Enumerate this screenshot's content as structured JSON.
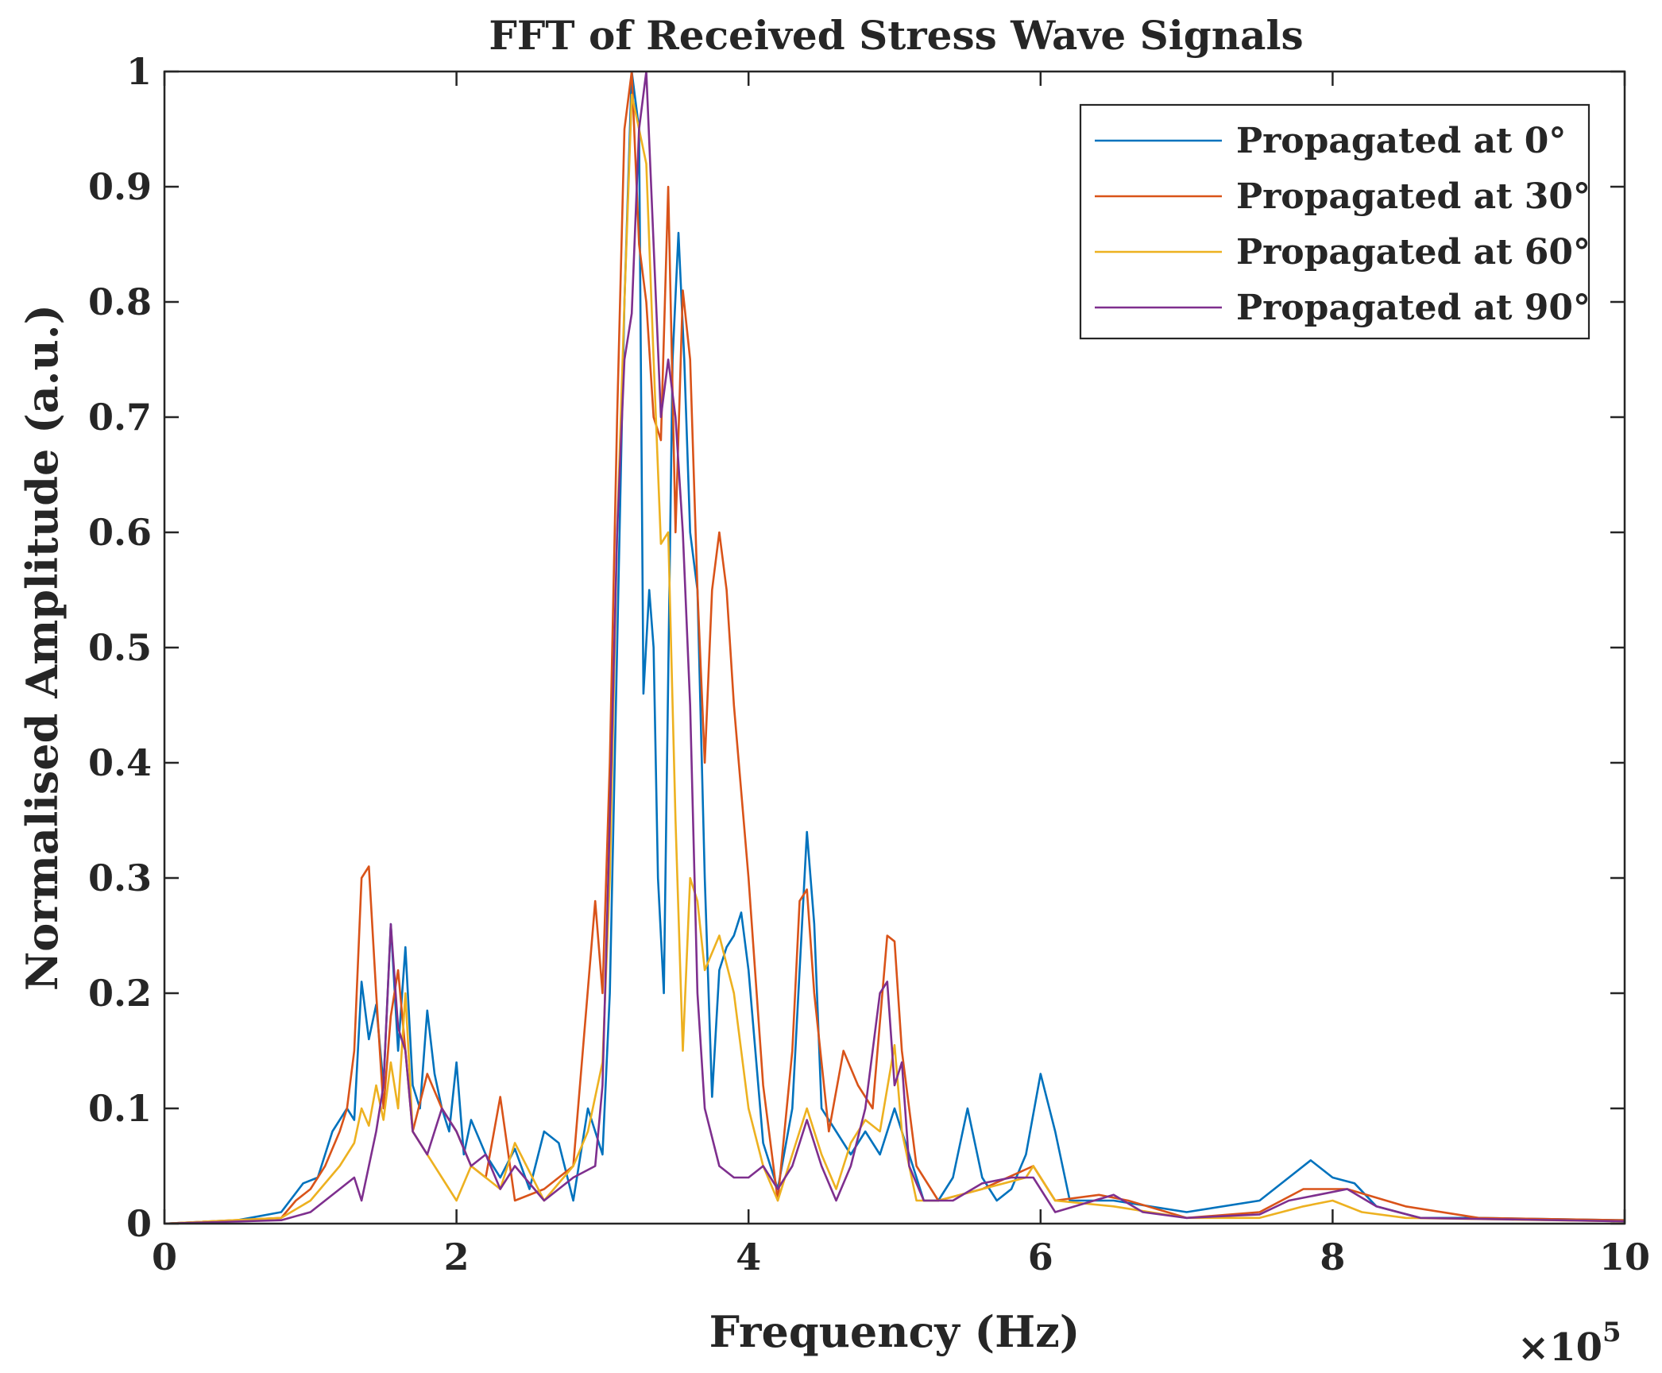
{
  "chart_data": {
    "type": "line",
    "title": "FFT of Received Stress Wave Signals",
    "xlabel": "Frequency (Hz)",
    "ylabel": "Normalised Amplitude (a.u.)",
    "x_multiplier": {
      "base": "×10",
      "exponent": "5"
    },
    "xlim": [
      0,
      10
    ],
    "ylim": [
      0,
      1
    ],
    "x_ticks": [
      0,
      2,
      4,
      6,
      8,
      10
    ],
    "x_tick_labels": [
      "0",
      "2",
      "4",
      "6",
      "8",
      "10"
    ],
    "y_ticks": [
      0,
      0.1,
      0.2,
      0.3,
      0.4,
      0.5,
      0.6,
      0.7,
      0.8,
      0.9,
      1
    ],
    "y_tick_labels": [
      "0",
      "0.1",
      "0.2",
      "0.3",
      "0.4",
      "0.5",
      "0.6",
      "0.7",
      "0.8",
      "0.9",
      "1"
    ],
    "grid": false,
    "legend_position": "top-right",
    "series": [
      {
        "name": "Propagated at 0°",
        "color": "#0072BD",
        "points": [
          [
            0,
            0
          ],
          [
            0.5,
            0.003
          ],
          [
            0.8,
            0.01
          ],
          [
            0.95,
            0.035
          ],
          [
            1.05,
            0.04
          ],
          [
            1.15,
            0.08
          ],
          [
            1.25,
            0.1
          ],
          [
            1.3,
            0.09
          ],
          [
            1.35,
            0.21
          ],
          [
            1.4,
            0.16
          ],
          [
            1.45,
            0.19
          ],
          [
            1.5,
            0.12
          ],
          [
            1.55,
            0.26
          ],
          [
            1.6,
            0.15
          ],
          [
            1.65,
            0.24
          ],
          [
            1.7,
            0.12
          ],
          [
            1.75,
            0.1
          ],
          [
            1.8,
            0.185
          ],
          [
            1.85,
            0.13
          ],
          [
            1.9,
            0.1
          ],
          [
            1.95,
            0.08
          ],
          [
            2.0,
            0.14
          ],
          [
            2.05,
            0.06
          ],
          [
            2.1,
            0.09
          ],
          [
            2.2,
            0.06
          ],
          [
            2.3,
            0.04
          ],
          [
            2.4,
            0.065
          ],
          [
            2.5,
            0.03
          ],
          [
            2.6,
            0.08
          ],
          [
            2.7,
            0.07
          ],
          [
            2.8,
            0.02
          ],
          [
            2.9,
            0.1
          ],
          [
            3.0,
            0.06
          ],
          [
            3.05,
            0.2
          ],
          [
            3.1,
            0.5
          ],
          [
            3.15,
            0.8
          ],
          [
            3.2,
            1.0
          ],
          [
            3.25,
            0.95
          ],
          [
            3.28,
            0.46
          ],
          [
            3.32,
            0.55
          ],
          [
            3.35,
            0.5
          ],
          [
            3.38,
            0.3
          ],
          [
            3.42,
            0.2
          ],
          [
            3.48,
            0.75
          ],
          [
            3.52,
            0.86
          ],
          [
            3.56,
            0.75
          ],
          [
            3.6,
            0.6
          ],
          [
            3.65,
            0.55
          ],
          [
            3.7,
            0.3
          ],
          [
            3.75,
            0.11
          ],
          [
            3.8,
            0.22
          ],
          [
            3.85,
            0.24
          ],
          [
            3.9,
            0.25
          ],
          [
            3.95,
            0.27
          ],
          [
            4.0,
            0.22
          ],
          [
            4.1,
            0.07
          ],
          [
            4.2,
            0.03
          ],
          [
            4.3,
            0.1
          ],
          [
            4.35,
            0.22
          ],
          [
            4.4,
            0.34
          ],
          [
            4.45,
            0.26
          ],
          [
            4.5,
            0.1
          ],
          [
            4.6,
            0.08
          ],
          [
            4.7,
            0.06
          ],
          [
            4.8,
            0.08
          ],
          [
            4.9,
            0.06
          ],
          [
            5.0,
            0.1
          ],
          [
            5.1,
            0.06
          ],
          [
            5.2,
            0.02
          ],
          [
            5.3,
            0.02
          ],
          [
            5.4,
            0.04
          ],
          [
            5.5,
            0.1
          ],
          [
            5.6,
            0.04
          ],
          [
            5.7,
            0.02
          ],
          [
            5.8,
            0.03
          ],
          [
            5.9,
            0.06
          ],
          [
            6.0,
            0.13
          ],
          [
            6.1,
            0.08
          ],
          [
            6.2,
            0.02
          ],
          [
            6.5,
            0.02
          ],
          [
            7.0,
            0.01
          ],
          [
            7.5,
            0.02
          ],
          [
            7.7,
            0.04
          ],
          [
            7.85,
            0.055
          ],
          [
            8.0,
            0.04
          ],
          [
            8.15,
            0.035
          ],
          [
            8.3,
            0.015
          ],
          [
            8.6,
            0.005
          ],
          [
            9.0,
            0.005
          ],
          [
            10,
            0.003
          ]
        ]
      },
      {
        "name": "Propagated at 30°",
        "color": "#D95319",
        "points": [
          [
            0,
            0
          ],
          [
            0.8,
            0.005
          ],
          [
            0.9,
            0.02
          ],
          [
            1.0,
            0.03
          ],
          [
            1.1,
            0.05
          ],
          [
            1.2,
            0.08
          ],
          [
            1.25,
            0.1
          ],
          [
            1.3,
            0.15
          ],
          [
            1.35,
            0.3
          ],
          [
            1.4,
            0.31
          ],
          [
            1.45,
            0.2
          ],
          [
            1.5,
            0.1
          ],
          [
            1.55,
            0.18
          ],
          [
            1.6,
            0.22
          ],
          [
            1.7,
            0.08
          ],
          [
            1.8,
            0.13
          ],
          [
            1.9,
            0.1
          ],
          [
            2.0,
            0.08
          ],
          [
            2.1,
            0.05
          ],
          [
            2.2,
            0.04
          ],
          [
            2.3,
            0.11
          ],
          [
            2.4,
            0.02
          ],
          [
            2.6,
            0.03
          ],
          [
            2.8,
            0.05
          ],
          [
            2.95,
            0.28
          ],
          [
            3.0,
            0.2
          ],
          [
            3.05,
            0.4
          ],
          [
            3.1,
            0.7
          ],
          [
            3.15,
            0.95
          ],
          [
            3.2,
            1.0
          ],
          [
            3.25,
            0.85
          ],
          [
            3.3,
            0.8
          ],
          [
            3.35,
            0.7
          ],
          [
            3.4,
            0.68
          ],
          [
            3.45,
            0.9
          ],
          [
            3.5,
            0.6
          ],
          [
            3.55,
            0.81
          ],
          [
            3.6,
            0.75
          ],
          [
            3.65,
            0.55
          ],
          [
            3.7,
            0.4
          ],
          [
            3.75,
            0.55
          ],
          [
            3.8,
            0.6
          ],
          [
            3.85,
            0.55
          ],
          [
            3.9,
            0.45
          ],
          [
            4.0,
            0.3
          ],
          [
            4.1,
            0.12
          ],
          [
            4.2,
            0.02
          ],
          [
            4.3,
            0.15
          ],
          [
            4.35,
            0.28
          ],
          [
            4.4,
            0.29
          ],
          [
            4.45,
            0.2
          ],
          [
            4.55,
            0.08
          ],
          [
            4.65,
            0.15
          ],
          [
            4.75,
            0.12
          ],
          [
            4.85,
            0.1
          ],
          [
            4.95,
            0.25
          ],
          [
            5.0,
            0.245
          ],
          [
            5.05,
            0.15
          ],
          [
            5.15,
            0.05
          ],
          [
            5.3,
            0.02
          ],
          [
            5.6,
            0.03
          ],
          [
            5.95,
            0.05
          ],
          [
            6.1,
            0.02
          ],
          [
            6.4,
            0.025
          ],
          [
            6.6,
            0.02
          ],
          [
            7.0,
            0.005
          ],
          [
            7.5,
            0.01
          ],
          [
            7.8,
            0.03
          ],
          [
            8.1,
            0.03
          ],
          [
            8.5,
            0.015
          ],
          [
            9.0,
            0.005
          ],
          [
            10,
            0.003
          ]
        ]
      },
      {
        "name": "Propagated at 60°",
        "color": "#EDB120",
        "points": [
          [
            0,
            0
          ],
          [
            0.8,
            0.005
          ],
          [
            1.0,
            0.02
          ],
          [
            1.2,
            0.05
          ],
          [
            1.3,
            0.07
          ],
          [
            1.35,
            0.1
          ],
          [
            1.4,
            0.085
          ],
          [
            1.45,
            0.12
          ],
          [
            1.5,
            0.09
          ],
          [
            1.55,
            0.14
          ],
          [
            1.6,
            0.1
          ],
          [
            1.65,
            0.2
          ],
          [
            1.7,
            0.08
          ],
          [
            1.8,
            0.06
          ],
          [
            1.9,
            0.04
          ],
          [
            2.0,
            0.02
          ],
          [
            2.1,
            0.05
          ],
          [
            2.2,
            0.04
          ],
          [
            2.3,
            0.03
          ],
          [
            2.4,
            0.07
          ],
          [
            2.6,
            0.02
          ],
          [
            2.8,
            0.05
          ],
          [
            2.9,
            0.08
          ],
          [
            3.0,
            0.14
          ],
          [
            3.05,
            0.3
          ],
          [
            3.1,
            0.6
          ],
          [
            3.15,
            0.8
          ],
          [
            3.2,
            0.98
          ],
          [
            3.25,
            0.95
          ],
          [
            3.3,
            0.92
          ],
          [
            3.35,
            0.75
          ],
          [
            3.4,
            0.59
          ],
          [
            3.45,
            0.6
          ],
          [
            3.5,
            0.35
          ],
          [
            3.55,
            0.15
          ],
          [
            3.6,
            0.3
          ],
          [
            3.65,
            0.28
          ],
          [
            3.7,
            0.22
          ],
          [
            3.8,
            0.25
          ],
          [
            3.9,
            0.2
          ],
          [
            4.0,
            0.1
          ],
          [
            4.1,
            0.05
          ],
          [
            4.2,
            0.02
          ],
          [
            4.3,
            0.06
          ],
          [
            4.4,
            0.1
          ],
          [
            4.5,
            0.06
          ],
          [
            4.6,
            0.03
          ],
          [
            4.7,
            0.07
          ],
          [
            4.8,
            0.09
          ],
          [
            4.9,
            0.08
          ],
          [
            5.0,
            0.155
          ],
          [
            5.05,
            0.08
          ],
          [
            5.15,
            0.02
          ],
          [
            5.3,
            0.02
          ],
          [
            5.6,
            0.03
          ],
          [
            5.9,
            0.04
          ],
          [
            5.95,
            0.05
          ],
          [
            6.1,
            0.02
          ],
          [
            6.5,
            0.015
          ],
          [
            7.0,
            0.005
          ],
          [
            7.5,
            0.005
          ],
          [
            7.8,
            0.015
          ],
          [
            8.0,
            0.02
          ],
          [
            8.2,
            0.01
          ],
          [
            8.5,
            0.005
          ],
          [
            10,
            0.002
          ]
        ]
      },
      {
        "name": "Propagated at 90°",
        "color": "#7E2F8E",
        "points": [
          [
            0,
            0
          ],
          [
            0.8,
            0.003
          ],
          [
            1.0,
            0.01
          ],
          [
            1.1,
            0.02
          ],
          [
            1.2,
            0.03
          ],
          [
            1.3,
            0.04
          ],
          [
            1.35,
            0.02
          ],
          [
            1.4,
            0.05
          ],
          [
            1.45,
            0.08
          ],
          [
            1.5,
            0.12
          ],
          [
            1.55,
            0.26
          ],
          [
            1.6,
            0.17
          ],
          [
            1.65,
            0.15
          ],
          [
            1.7,
            0.08
          ],
          [
            1.8,
            0.06
          ],
          [
            1.9,
            0.1
          ],
          [
            2.0,
            0.08
          ],
          [
            2.1,
            0.05
          ],
          [
            2.2,
            0.06
          ],
          [
            2.3,
            0.03
          ],
          [
            2.4,
            0.05
          ],
          [
            2.6,
            0.02
          ],
          [
            2.8,
            0.04
          ],
          [
            2.95,
            0.05
          ],
          [
            3.0,
            0.12
          ],
          [
            3.05,
            0.35
          ],
          [
            3.1,
            0.6
          ],
          [
            3.15,
            0.75
          ],
          [
            3.2,
            0.79
          ],
          [
            3.25,
            0.95
          ],
          [
            3.3,
            1.0
          ],
          [
            3.35,
            0.85
          ],
          [
            3.4,
            0.7
          ],
          [
            3.45,
            0.75
          ],
          [
            3.5,
            0.7
          ],
          [
            3.55,
            0.6
          ],
          [
            3.6,
            0.45
          ],
          [
            3.65,
            0.2
          ],
          [
            3.7,
            0.1
          ],
          [
            3.8,
            0.05
          ],
          [
            3.9,
            0.04
          ],
          [
            4.0,
            0.04
          ],
          [
            4.1,
            0.05
          ],
          [
            4.2,
            0.03
          ],
          [
            4.3,
            0.05
          ],
          [
            4.4,
            0.09
          ],
          [
            4.5,
            0.05
          ],
          [
            4.6,
            0.02
          ],
          [
            4.7,
            0.05
          ],
          [
            4.8,
            0.1
          ],
          [
            4.9,
            0.2
          ],
          [
            4.95,
            0.21
          ],
          [
            5.0,
            0.12
          ],
          [
            5.05,
            0.14
          ],
          [
            5.1,
            0.05
          ],
          [
            5.2,
            0.02
          ],
          [
            5.4,
            0.02
          ],
          [
            5.6,
            0.035
          ],
          [
            5.8,
            0.04
          ],
          [
            5.95,
            0.04
          ],
          [
            6.1,
            0.01
          ],
          [
            6.5,
            0.025
          ],
          [
            6.7,
            0.01
          ],
          [
            7.0,
            0.005
          ],
          [
            7.5,
            0.008
          ],
          [
            7.7,
            0.02
          ],
          [
            7.9,
            0.025
          ],
          [
            8.1,
            0.03
          ],
          [
            8.3,
            0.015
          ],
          [
            8.6,
            0.005
          ],
          [
            10,
            0.002
          ]
        ]
      }
    ]
  }
}
